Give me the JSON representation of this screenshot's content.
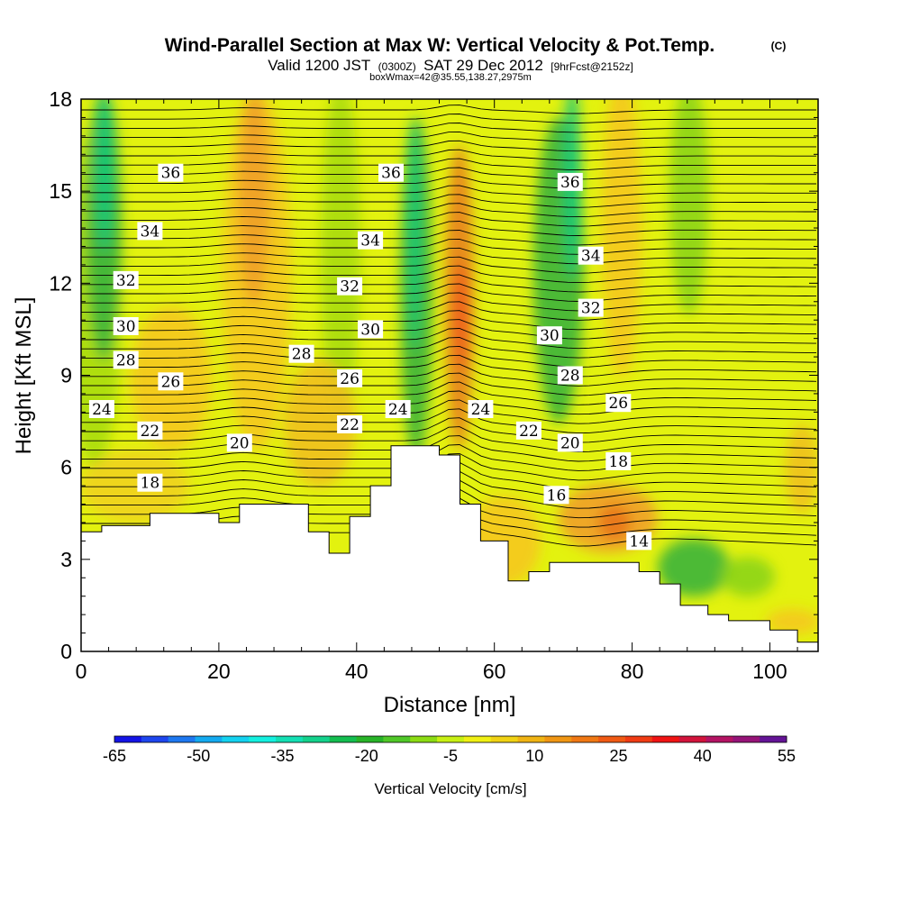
{
  "title": {
    "main": "Wind-Parallel Section at Max W: Vertical Velocity & Pot.Temp.",
    "copyright": "(C)",
    "sub_parts": [
      "Valid 1200 JST",
      "(0300Z)",
      "SAT 29 Dec 2012",
      "[9hrFcst@2152z]"
    ],
    "info": "boxWmax=42@35.55,138.27,2975m"
  },
  "chart_data": {
    "type": "heatmap",
    "xlabel": "Distance [nm]",
    "ylabel": "Height [Kft MSL]",
    "xlim": [
      0,
      107
    ],
    "ylim": [
      0,
      18
    ],
    "xticks": [
      0,
      20,
      40,
      60,
      80,
      100
    ],
    "yticks": [
      0,
      3,
      6,
      9,
      12,
      15,
      18
    ],
    "contours": [
      {
        "label": "36",
        "x": 13,
        "y": 15.6
      },
      {
        "label": "36",
        "x": 45,
        "y": 15.6
      },
      {
        "label": "36",
        "x": 71,
        "y": 15.3
      },
      {
        "label": "34",
        "x": 10,
        "y": 13.7
      },
      {
        "label": "34",
        "x": 42,
        "y": 13.4
      },
      {
        "label": "34",
        "x": 74,
        "y": 12.9
      },
      {
        "label": "32",
        "x": 6.5,
        "y": 12.1
      },
      {
        "label": "32",
        "x": 39,
        "y": 11.9
      },
      {
        "label": "32",
        "x": 74,
        "y": 11.2
      },
      {
        "label": "30",
        "x": 6.5,
        "y": 10.6
      },
      {
        "label": "30",
        "x": 42,
        "y": 10.5
      },
      {
        "label": "30",
        "x": 68,
        "y": 10.3
      },
      {
        "label": "28",
        "x": 6.5,
        "y": 9.5
      },
      {
        "label": "28",
        "x": 32,
        "y": 9.7
      },
      {
        "label": "28",
        "x": 71,
        "y": 9.0
      },
      {
        "label": "26",
        "x": 13,
        "y": 8.8
      },
      {
        "label": "26",
        "x": 39,
        "y": 8.9
      },
      {
        "label": "26",
        "x": 78,
        "y": 8.1
      },
      {
        "label": "24",
        "x": 3,
        "y": 7.9
      },
      {
        "label": "24",
        "x": 46,
        "y": 7.9
      },
      {
        "label": "24",
        "x": 58,
        "y": 7.9
      },
      {
        "label": "22",
        "x": 10,
        "y": 7.2
      },
      {
        "label": "22",
        "x": 39,
        "y": 7.4
      },
      {
        "label": "22",
        "x": 65,
        "y": 7.2
      },
      {
        "label": "20",
        "x": 23,
        "y": 6.8
      },
      {
        "label": "20",
        "x": 71,
        "y": 6.8
      },
      {
        "label": "18",
        "x": 10,
        "y": 5.5
      },
      {
        "label": "18",
        "x": 78,
        "y": 6.2
      },
      {
        "label": "16",
        "x": 69,
        "y": 5.1
      },
      {
        "label": "14",
        "x": 81,
        "y": 3.6
      }
    ],
    "terrain": [
      [
        0,
        3.9
      ],
      [
        3,
        3.9
      ],
      [
        3,
        4.1
      ],
      [
        10,
        4.1
      ],
      [
        10,
        4.5
      ],
      [
        20,
        4.5
      ],
      [
        20,
        4.2
      ],
      [
        23,
        4.2
      ],
      [
        23,
        4.8
      ],
      [
        33,
        4.8
      ],
      [
        33,
        3.9
      ],
      [
        36,
        3.9
      ],
      [
        36,
        3.2
      ],
      [
        39,
        3.2
      ],
      [
        39,
        4.4
      ],
      [
        42,
        4.4
      ],
      [
        42,
        5.4
      ],
      [
        45,
        5.4
      ],
      [
        45,
        6.7
      ],
      [
        52,
        6.7
      ],
      [
        52,
        6.4
      ],
      [
        55,
        6.4
      ],
      [
        55,
        4.8
      ],
      [
        58,
        4.8
      ],
      [
        58,
        3.6
      ],
      [
        62,
        3.6
      ],
      [
        62,
        2.3
      ],
      [
        65,
        2.3
      ],
      [
        65,
        2.6
      ],
      [
        68,
        2.6
      ],
      [
        68,
        2.9
      ],
      [
        81,
        2.9
      ],
      [
        81,
        2.6
      ],
      [
        84,
        2.6
      ],
      [
        84,
        2.2
      ],
      [
        87,
        2.2
      ],
      [
        87,
        1.5
      ],
      [
        91,
        1.5
      ],
      [
        91,
        1.2
      ],
      [
        94,
        1.2
      ],
      [
        94,
        1.0
      ],
      [
        100,
        1.0
      ],
      [
        100,
        0.7
      ],
      [
        104,
        0.7
      ],
      [
        104,
        0.3
      ],
      [
        107,
        0.3
      ]
    ],
    "colorbar": {
      "label": "Vertical Velocity [cm/s]",
      "tick_labels": [
        "-65",
        "-50",
        "-35",
        "-20",
        "-5",
        "10",
        "25",
        "40",
        "55"
      ],
      "colors": [
        "#1414e6",
        "#1e46ee",
        "#1e78f0",
        "#14aaf0",
        "#14d2f0",
        "#14f0e0",
        "#14e0b4",
        "#14d28c",
        "#14be50",
        "#28b428",
        "#50c828",
        "#8cdc14",
        "#c8f014",
        "#f0f014",
        "#f0d214",
        "#f0b414",
        "#f09614",
        "#f07814",
        "#f05a14",
        "#f03c14",
        "#f01414",
        "#d2143c",
        "#b41464",
        "#961478",
        "#641496"
      ]
    }
  }
}
